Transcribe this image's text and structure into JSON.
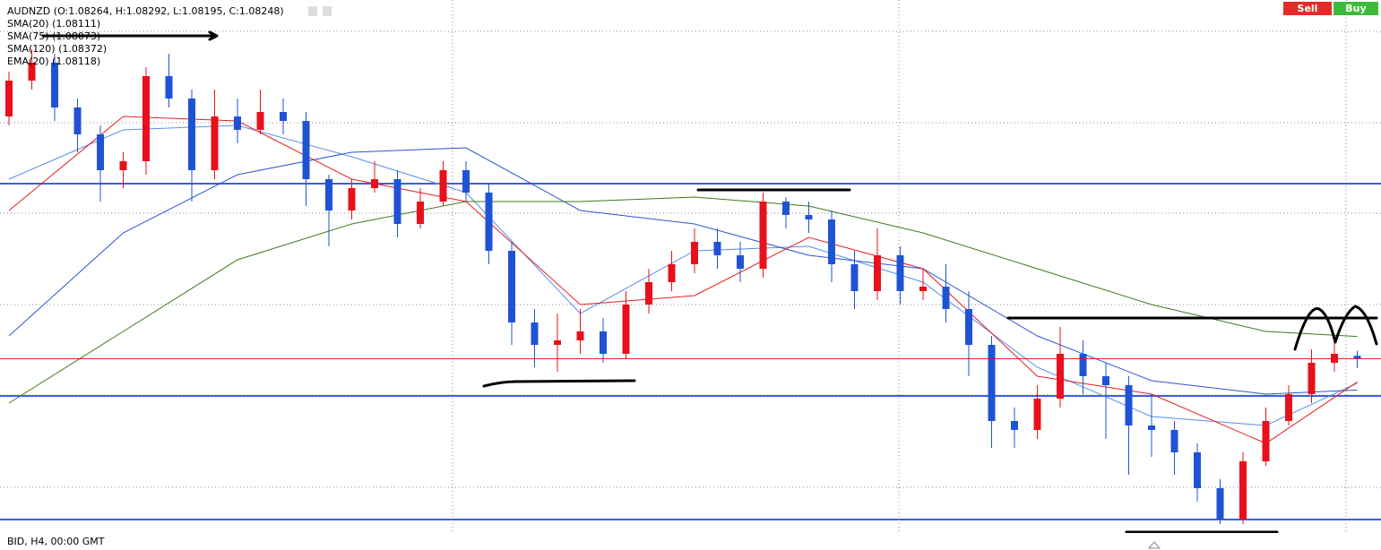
{
  "chart_data": {
    "type": "candlestick",
    "title": "AUDNZD (O:1.08264, H:1.08292, L:1.08195, C:1.08248)",
    "footer": "BID, H4, 00:00 GMT",
    "buttons": [
      "Sell",
      "Buy"
    ],
    "up_color": "#e8101a",
    "down_color": "#1f53d6",
    "ylim": [
      1.07275,
      1.1025
    ],
    "open": [
      1.096,
      1.098,
      1.099,
      1.0965,
      1.095,
      1.093,
      1.0935,
      1.09825,
      1.097,
      1.093,
      1.096,
      1.09525,
      1.09625,
      1.09575,
      1.0925,
      1.09075,
      1.092,
      1.0925,
      1.09,
      1.09125,
      1.093,
      1.09175,
      1.0885,
      1.0845,
      1.08325,
      1.0835,
      1.084,
      1.08275,
      1.0855,
      1.08675,
      1.08775,
      1.089,
      1.08825,
      1.0875,
      1.09125,
      1.0905,
      1.09025,
      1.08775,
      1.08625,
      1.08825,
      1.08625,
      1.0865,
      1.08525,
      1.08325,
      1.079,
      1.0785,
      1.08025,
      1.08275,
      1.0815,
      1.081,
      1.07875,
      1.0785,
      1.07725,
      1.07525,
      1.0735,
      1.07675,
      1.079,
      1.0805,
      1.08225,
      1.08264
    ],
    "high": [
      1.0985,
      1.09975,
      1.0995,
      1.097,
      1.0955,
      1.094,
      1.09875,
      1.0995,
      1.0975,
      1.0975,
      1.097,
      1.0975,
      1.097,
      1.09625,
      1.09275,
      1.0925,
      1.0935,
      1.093,
      1.092,
      1.0935,
      1.0935,
      1.09225,
      1.089,
      1.08525,
      1.085,
      1.08525,
      1.08475,
      1.08625,
      1.0875,
      1.0885,
      1.08975,
      1.08975,
      1.089,
      1.09175,
      1.0915,
      1.09125,
      1.09075,
      1.0885,
      1.08975,
      1.08875,
      1.0875,
      1.08775,
      1.08625,
      1.08375,
      1.07975,
      1.081,
      1.08425,
      1.0835,
      1.08225,
      1.0815,
      1.0805,
      1.079,
      1.07775,
      1.07575,
      1.07725,
      1.07975,
      1.081,
      1.083,
      1.08375,
      1.08292
    ],
    "low": [
      1.0955,
      1.0975,
      1.09575,
      1.094,
      1.09125,
      1.092,
      1.09275,
      1.0965,
      1.09125,
      1.0925,
      1.0945,
      1.095,
      1.095,
      1.091,
      1.08875,
      1.09025,
      1.09175,
      1.08925,
      1.08975,
      1.091,
      1.09125,
      1.08775,
      1.08325,
      1.082,
      1.08175,
      1.08275,
      1.08225,
      1.0825,
      1.085,
      1.08625,
      1.08725,
      1.0875,
      1.08675,
      1.087,
      1.08975,
      1.0895,
      1.08675,
      1.08525,
      1.08575,
      1.0855,
      1.08575,
      1.0845,
      1.0815,
      1.0775,
      1.0775,
      1.078,
      1.07975,
      1.0805,
      1.078,
      1.076,
      1.077,
      1.076,
      1.0745,
      1.07325,
      1.07325,
      1.0765,
      1.07875,
      1.08,
      1.08175,
      1.08195
    ],
    "close": [
      1.098,
      1.099,
      1.0965,
      1.095,
      1.093,
      1.0935,
      1.09825,
      1.097,
      1.093,
      1.096,
      1.09525,
      1.09625,
      1.09575,
      1.0925,
      1.09075,
      1.092,
      1.0925,
      1.09,
      1.09125,
      1.093,
      1.09175,
      1.0885,
      1.0845,
      1.08325,
      1.0835,
      1.084,
      1.08275,
      1.0855,
      1.08675,
      1.08775,
      1.089,
      1.08825,
      1.0875,
      1.09125,
      1.0905,
      1.09025,
      1.08775,
      1.08625,
      1.08825,
      1.08625,
      1.0865,
      1.08525,
      1.08325,
      1.079,
      1.0785,
      1.08025,
      1.08275,
      1.0815,
      1.081,
      1.07875,
      1.0785,
      1.07725,
      1.07525,
      1.0735,
      1.07675,
      1.079,
      1.0805,
      1.08225,
      1.08275,
      1.08248
    ],
    "price_line_color": "#e01010",
    "horizontal_lines": [
      {
        "value": 1.09225,
        "color": "#3c5fe0"
      },
      {
        "value": 1.0804,
        "color": "#3c5fe0"
      },
      {
        "value": 1.0735,
        "color": "#3c5fe0"
      }
    ],
    "series": [
      {
        "name": "SMA(20) (1.08111)",
        "color": "#5b8de8",
        "x": [
          0,
          5,
          10,
          15,
          20,
          25,
          30,
          35,
          40,
          45,
          50,
          55,
          59
        ],
        "values": [
          1.0925,
          1.09525,
          1.0955,
          1.09375,
          1.09175,
          1.085,
          1.0885,
          1.08875,
          1.08675,
          1.082,
          1.07925,
          1.07875,
          1.08111
        ]
      },
      {
        "name": "SMA(75) (1.08073)",
        "color": "#2a55d0",
        "x": [
          0,
          5,
          10,
          15,
          20,
          25,
          30,
          35,
          40,
          45,
          50,
          55,
          59
        ],
        "values": [
          1.08375,
          1.0895,
          1.09275,
          1.094,
          1.09425,
          1.09075,
          1.09,
          1.08825,
          1.0875,
          1.08375,
          1.08125,
          1.0805,
          1.08073
        ]
      },
      {
        "name": "SMA(120) (1.08372)",
        "color": "#3c7a1e",
        "x": [
          0,
          5,
          10,
          15,
          20,
          25,
          30,
          35,
          40,
          45,
          50,
          55,
          59
        ],
        "values": [
          1.08,
          1.084,
          1.088,
          1.09,
          1.09125,
          1.09125,
          1.0915,
          1.091,
          1.0895,
          1.0875,
          1.0855,
          1.084,
          1.08372
        ]
      },
      {
        "name": "EMA(20) (1.08118)",
        "color": "#e02020",
        "x": [
          0,
          5,
          10,
          15,
          20,
          25,
          30,
          35,
          40,
          45,
          50,
          55,
          59
        ],
        "values": [
          1.09075,
          1.096,
          1.09575,
          1.0925,
          1.09125,
          1.0855,
          1.086,
          1.08925,
          1.0875,
          1.0815,
          1.0805,
          1.07775,
          1.08118
        ]
      }
    ]
  }
}
